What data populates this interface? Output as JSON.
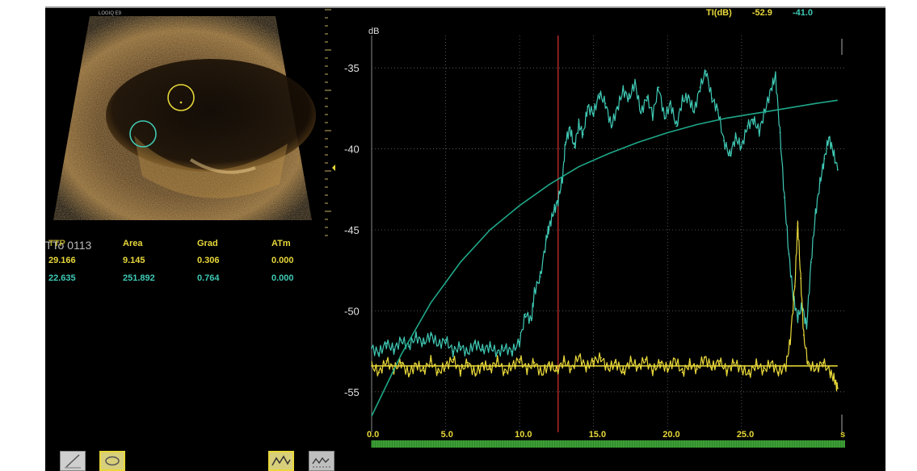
{
  "ultrasound": {
    "logo": "LOGIQ E9"
  },
  "ti_header": {
    "label": "TI(dB)",
    "value_yellow": "-52.9",
    "value_cyan": "-41.0"
  },
  "stats_table": {
    "headers": [
      "TTP",
      "Area",
      "Grad",
      "ATm"
    ],
    "overlay_text": "TTo 0113",
    "rows": [
      {
        "color": "#e8d83a",
        "values": [
          "29.166",
          "9.145",
          "0.306",
          "0.000"
        ]
      },
      {
        "color": "#3fc9b4",
        "values": [
          "22.635",
          "251.892",
          "0.764",
          "0.000"
        ]
      }
    ],
    "header_color": "#e8d83a"
  },
  "chart_data": {
    "type": "line",
    "title": "",
    "xlabel": "s",
    "ylabel": "dB",
    "xlim": [
      0,
      32
    ],
    "ylim": [
      -57.5,
      -33
    ],
    "x_ticks": [
      "0.0",
      "5.0",
      "10.0",
      "15.0",
      "20.0",
      "25.0",
      "s"
    ],
    "x_tick_values": [
      0,
      5,
      10,
      15,
      20,
      25,
      32
    ],
    "y_ticks": [
      "-35",
      "-40",
      "-45",
      "-50",
      "-55"
    ],
    "y_tick_values": [
      -35,
      -40,
      -45,
      -50,
      -55
    ],
    "grid": true,
    "marker_x": 12.6,
    "series": [
      {
        "color": "#3fc9b4",
        "kind": "raw",
        "points": [
          [
            0.0,
            -52.3
          ],
          [
            0.5,
            -52.6
          ],
          [
            1.0,
            -52.0
          ],
          [
            1.5,
            -52.4
          ],
          [
            2.0,
            -51.8
          ],
          [
            2.5,
            -52.2
          ],
          [
            3.0,
            -51.6
          ],
          [
            3.5,
            -52.0
          ],
          [
            4.0,
            -51.5
          ],
          [
            4.5,
            -52.1
          ],
          [
            5.0,
            -51.8
          ],
          [
            5.5,
            -52.5
          ],
          [
            6.0,
            -52.2
          ],
          [
            6.5,
            -52.6
          ],
          [
            7.0,
            -52.0
          ],
          [
            7.5,
            -52.4
          ],
          [
            8.0,
            -52.2
          ],
          [
            8.5,
            -52.6
          ],
          [
            9.0,
            -52.3
          ],
          [
            9.5,
            -52.5
          ],
          [
            10.0,
            -51.9
          ],
          [
            10.4,
            -50.2
          ],
          [
            10.8,
            -50.6
          ],
          [
            11.0,
            -48.8
          ],
          [
            11.4,
            -47.9
          ],
          [
            11.8,
            -45.6
          ],
          [
            12.0,
            -44.8
          ],
          [
            12.3,
            -43.9
          ],
          [
            12.6,
            -43.2
          ],
          [
            12.9,
            -41.8
          ],
          [
            13.1,
            -39.6
          ],
          [
            13.4,
            -38.7
          ],
          [
            13.7,
            -39.9
          ],
          [
            14.0,
            -38.5
          ],
          [
            14.3,
            -39.1
          ],
          [
            14.6,
            -37.4
          ],
          [
            15.0,
            -37.8
          ],
          [
            15.4,
            -36.6
          ],
          [
            15.8,
            -37.2
          ],
          [
            16.2,
            -38.6
          ],
          [
            16.6,
            -37.5
          ],
          [
            17.0,
            -36.4
          ],
          [
            17.4,
            -36.9
          ],
          [
            17.8,
            -35.9
          ],
          [
            18.2,
            -37.8
          ],
          [
            18.6,
            -36.8
          ],
          [
            19.0,
            -37.9
          ],
          [
            19.4,
            -36.2
          ],
          [
            19.8,
            -38.1
          ],
          [
            20.2,
            -37.2
          ],
          [
            20.6,
            -38.6
          ],
          [
            21.0,
            -37.0
          ],
          [
            21.4,
            -36.8
          ],
          [
            21.8,
            -37.7
          ],
          [
            22.2,
            -36.2
          ],
          [
            22.6,
            -35.2
          ],
          [
            23.0,
            -36.9
          ],
          [
            23.4,
            -37.6
          ],
          [
            23.8,
            -39.5
          ],
          [
            24.2,
            -40.4
          ],
          [
            24.6,
            -39.3
          ],
          [
            25.0,
            -39.9
          ],
          [
            25.4,
            -38.6
          ],
          [
            25.8,
            -38.2
          ],
          [
            26.2,
            -38.9
          ],
          [
            26.6,
            -37.6
          ],
          [
            27.0,
            -36.3
          ],
          [
            27.3,
            -35.5
          ],
          [
            27.6,
            -39.0
          ],
          [
            27.9,
            -43.0
          ],
          [
            28.2,
            -46.5
          ],
          [
            28.5,
            -49.2
          ],
          [
            28.8,
            -50.4
          ],
          [
            29.1,
            -49.7
          ],
          [
            29.4,
            -51.0
          ],
          [
            29.7,
            -47.0
          ],
          [
            30.0,
            -44.0
          ],
          [
            30.3,
            -42.1
          ],
          [
            30.6,
            -40.6
          ],
          [
            30.9,
            -39.3
          ],
          [
            31.2,
            -40.2
          ],
          [
            31.5,
            -41.3
          ]
        ]
      },
      {
        "color": "#e8d83a",
        "kind": "raw",
        "points": [
          [
            0.0,
            -53.4
          ],
          [
            0.5,
            -53.8
          ],
          [
            1.0,
            -53.1
          ],
          [
            1.5,
            -53.6
          ],
          [
            2.0,
            -53.2
          ],
          [
            2.5,
            -53.9
          ],
          [
            3.0,
            -53.3
          ],
          [
            3.5,
            -53.7
          ],
          [
            4.0,
            -53.1
          ],
          [
            4.5,
            -53.8
          ],
          [
            5.0,
            -53.4
          ],
          [
            5.5,
            -53.0
          ],
          [
            6.0,
            -53.7
          ],
          [
            6.5,
            -53.2
          ],
          [
            7.0,
            -53.9
          ],
          [
            7.5,
            -53.3
          ],
          [
            8.0,
            -53.6
          ],
          [
            8.5,
            -53.1
          ],
          [
            9.0,
            -53.8
          ],
          [
            9.5,
            -53.4
          ],
          [
            10.0,
            -53.0
          ],
          [
            10.5,
            -53.6
          ],
          [
            11.0,
            -53.2
          ],
          [
            11.5,
            -53.9
          ],
          [
            12.0,
            -53.3
          ],
          [
            12.5,
            -53.7
          ],
          [
            13.0,
            -53.1
          ],
          [
            13.5,
            -53.6
          ],
          [
            14.0,
            -52.8
          ],
          [
            14.5,
            -53.5
          ],
          [
            15.0,
            -53.1
          ],
          [
            15.5,
            -52.9
          ],
          [
            16.0,
            -53.6
          ],
          [
            16.5,
            -53.2
          ],
          [
            17.0,
            -53.8
          ],
          [
            17.5,
            -53.1
          ],
          [
            18.0,
            -53.5
          ],
          [
            18.5,
            -53.0
          ],
          [
            19.0,
            -53.7
          ],
          [
            19.5,
            -53.2
          ],
          [
            20.0,
            -53.6
          ],
          [
            20.5,
            -53.0
          ],
          [
            21.0,
            -53.8
          ],
          [
            21.5,
            -53.3
          ],
          [
            22.0,
            -53.6
          ],
          [
            22.5,
            -52.9
          ],
          [
            23.0,
            -53.5
          ],
          [
            23.5,
            -53.1
          ],
          [
            24.0,
            -53.7
          ],
          [
            24.5,
            -53.2
          ],
          [
            25.0,
            -53.6
          ],
          [
            25.5,
            -53.9
          ],
          [
            26.0,
            -53.3
          ],
          [
            26.5,
            -53.7
          ],
          [
            27.0,
            -53.2
          ],
          [
            27.5,
            -53.8
          ],
          [
            28.0,
            -53.4
          ],
          [
            28.3,
            -51.8
          ],
          [
            28.6,
            -48.5
          ],
          [
            28.8,
            -44.6
          ],
          [
            29.0,
            -48.0
          ],
          [
            29.2,
            -51.5
          ],
          [
            29.5,
            -53.3
          ],
          [
            30.0,
            -53.6
          ],
          [
            30.5,
            -53.2
          ],
          [
            31.0,
            -53.8
          ],
          [
            31.3,
            -54.3
          ],
          [
            31.5,
            -54.8
          ]
        ]
      },
      {
        "color": "#1ea889",
        "kind": "fit",
        "points": [
          [
            0.0,
            -56.5
          ],
          [
            2.0,
            -52.7
          ],
          [
            4.0,
            -49.5
          ],
          [
            6.0,
            -47.0
          ],
          [
            8.0,
            -45.0
          ],
          [
            10.0,
            -43.5
          ],
          [
            12.0,
            -42.2
          ],
          [
            14.0,
            -41.1
          ],
          [
            16.0,
            -40.3
          ],
          [
            18.0,
            -39.6
          ],
          [
            20.0,
            -39.0
          ],
          [
            22.0,
            -38.5
          ],
          [
            24.0,
            -38.1
          ],
          [
            26.0,
            -37.8
          ],
          [
            28.0,
            -37.5
          ],
          [
            30.0,
            -37.2
          ],
          [
            31.5,
            -37.0
          ]
        ]
      },
      {
        "color": "#e8d83a",
        "kind": "fit",
        "points": [
          [
            0.0,
            -53.4
          ],
          [
            31.5,
            -53.4
          ]
        ]
      }
    ]
  }
}
